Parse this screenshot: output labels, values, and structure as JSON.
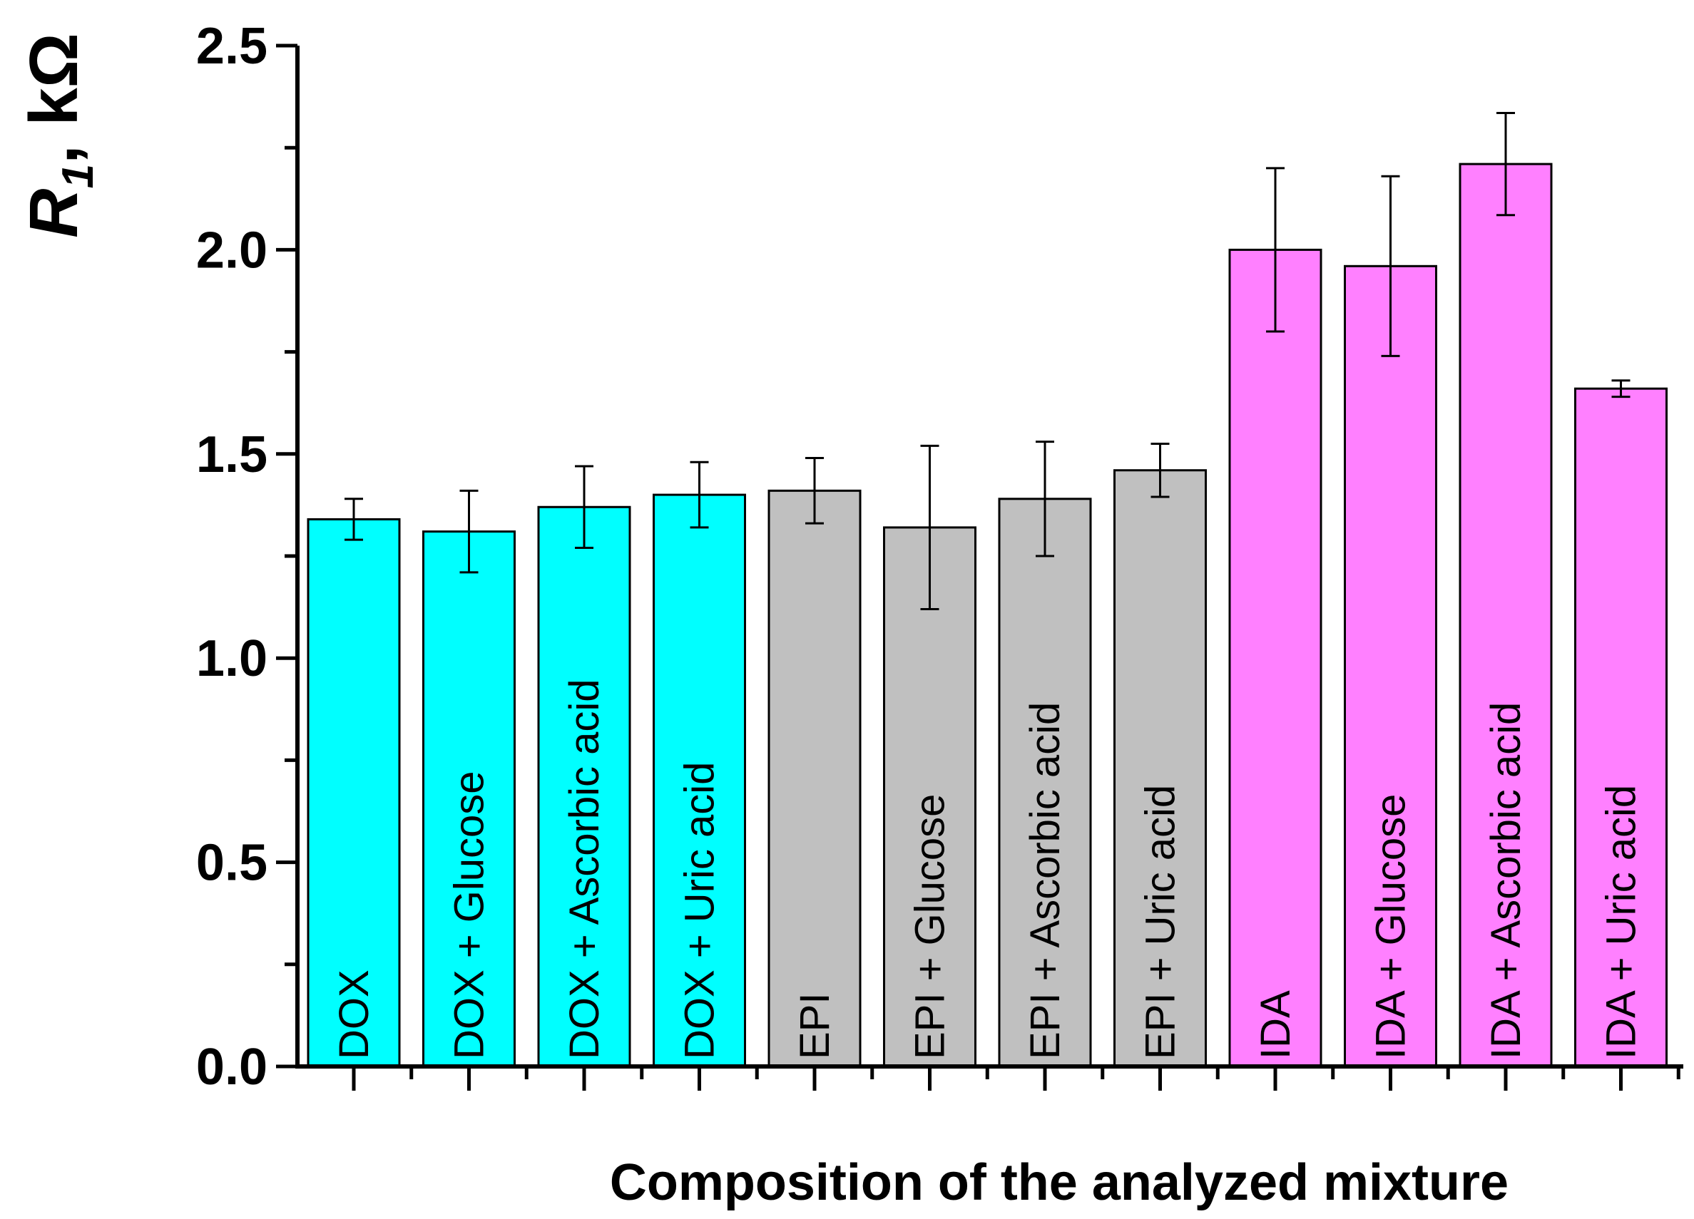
{
  "chart_data": {
    "type": "bar",
    "title": "",
    "xlabel": "Composition of the analyzed mixture",
    "ylabel": {
      "symbol": "R",
      "subscript": "1",
      "unit": ", kΩ"
    },
    "ylim": [
      0,
      2.5
    ],
    "yticks": [
      "0.0",
      "0.5",
      "1.0",
      "1.5",
      "2.0",
      "2.5"
    ],
    "grid": false,
    "categories": [
      "DOX",
      "DOX + Glucose",
      "DOX + Ascorbic acid",
      "DOX + Uric acid",
      "EPI",
      "EPI + Glucose",
      "EPI + Ascorbic acid",
      "EPI + Uric acid",
      "IDA",
      "IDA + Glucose",
      "IDA + Ascorbic acid",
      "IDA + Uric acid"
    ],
    "values": [
      1.34,
      1.31,
      1.37,
      1.4,
      1.41,
      1.32,
      1.39,
      1.46,
      2.0,
      1.96,
      2.21,
      1.66
    ],
    "errors": [
      0.05,
      0.1,
      0.1,
      0.08,
      0.08,
      0.2,
      0.14,
      0.065,
      0.2,
      0.22,
      0.125,
      0.02
    ],
    "groups": [
      {
        "name": "DOX",
        "color": "#00FFFF",
        "members": [
          0,
          1,
          2,
          3
        ]
      },
      {
        "name": "EPI",
        "color": "#C0C0C0",
        "members": [
          4,
          5,
          6,
          7
        ]
      },
      {
        "name": "IDA",
        "color": "#FF80FF",
        "members": [
          8,
          9,
          10,
          11
        ]
      }
    ]
  }
}
